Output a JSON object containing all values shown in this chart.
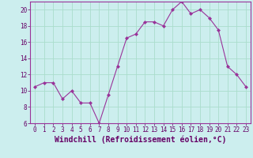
{
  "x": [
    0,
    1,
    2,
    3,
    4,
    5,
    6,
    7,
    8,
    9,
    10,
    11,
    12,
    13,
    14,
    15,
    16,
    17,
    18,
    19,
    20,
    21,
    22,
    23
  ],
  "y": [
    10.5,
    11.0,
    11.0,
    9.0,
    10.0,
    8.5,
    8.5,
    6.0,
    9.5,
    13.0,
    16.5,
    17.0,
    18.5,
    18.5,
    18.0,
    20.0,
    21.0,
    19.5,
    20.0,
    19.0,
    17.5,
    13.0,
    12.0,
    10.5
  ],
  "line_color": "#993399",
  "marker": "D",
  "markersize": 2.0,
  "linewidth": 0.8,
  "xlabel": "Windchill (Refroidissement éolien,°C)",
  "xlabel_fontsize": 7,
  "xlabel_color": "#660066",
  "background_color": "#cceeee",
  "grid_color": "#aaddcc",
  "tick_color": "#660066",
  "ylim": [
    6,
    21
  ],
  "xlim": [
    -0.5,
    23.5
  ],
  "yticks": [
    6,
    8,
    10,
    12,
    14,
    16,
    18,
    20
  ],
  "xticks": [
    0,
    1,
    2,
    3,
    4,
    5,
    6,
    7,
    8,
    9,
    10,
    11,
    12,
    13,
    14,
    15,
    16,
    17,
    18,
    19,
    20,
    21,
    22,
    23
  ],
  "tick_fontsize": 5.5,
  "spine_color": "#993399"
}
